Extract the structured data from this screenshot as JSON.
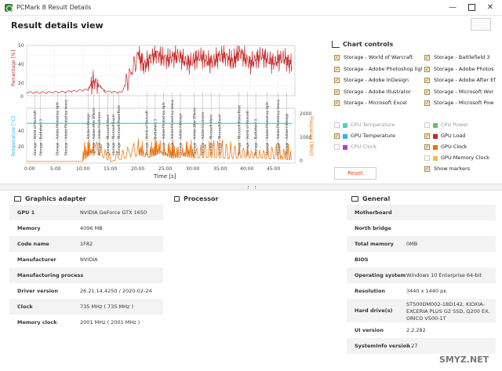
{
  "window": {
    "title": "PCMark 8 Result Details"
  },
  "page_title": "Result details view",
  "chart": {
    "y_left_label": "Percentage [%]",
    "y_temp_label": "Temperature [°C]",
    "y_freq_label": "Frequency [MHz]",
    "x_label": "Time [s]",
    "pct_ticks": [
      "50",
      "40",
      "20",
      "0"
    ],
    "temp_ticks": [
      "40",
      "20"
    ],
    "freq_ticks": [
      "2000",
      "1000",
      "0"
    ],
    "x_ticks": [
      "0:00",
      "5:00",
      "10:00",
      "15:00",
      "20:00",
      "25:00",
      "30:00",
      "35:00",
      "40:00",
      "45:00"
    ]
  },
  "chart_data": {
    "type": "line",
    "xlabel": "Time [s]",
    "ylabel": "Percentage [%]",
    "y2label": "Frequency [MHz]",
    "y3label": "Temperature [°C]",
    "x_range": [
      "0:00",
      "48:00"
    ],
    "ylim": [
      0,
      50
    ],
    "y2lim": [
      0,
      2500
    ],
    "series": [
      {
        "name": "GPU Load",
        "color": "#c62828",
        "x": [
          0,
          4,
          8,
          11,
          12,
          14,
          17,
          20,
          21,
          23,
          25,
          27,
          29,
          31,
          33,
          35,
          37,
          38,
          40,
          42,
          44,
          46,
          47.5
        ],
        "values": [
          2,
          2,
          3,
          5,
          15,
          3,
          2,
          40,
          30,
          42,
          36,
          40,
          32,
          39,
          33,
          41,
          34,
          44,
          32,
          40,
          33,
          38,
          30
        ]
      },
      {
        "name": "GPU Clock",
        "color": "#ef6c00",
        "x": [
          0,
          5,
          10,
          12,
          15,
          20,
          22,
          24,
          26,
          28,
          30,
          33,
          36,
          39,
          42,
          45,
          47.5
        ],
        "values": [
          150,
          150,
          160,
          1000,
          160,
          700,
          500,
          900,
          400,
          600,
          450,
          550,
          400,
          500,
          450,
          350,
          300
        ]
      },
      {
        "name": "GPU Temperature",
        "color": "#29b6f6",
        "x": [
          0,
          10,
          20,
          30,
          40,
          47.5
        ],
        "values": [
          35,
          35,
          35,
          35,
          35,
          35
        ]
      }
    ],
    "markers": [
      "Storage - World of Warcraft",
      "Storage - Battlefield 3",
      "Storage - Adobe Photoshop light",
      "Storage - Adobe Photoshop heavy",
      "Storage - Adobe InDesign",
      "Storage - Adobe After Effects",
      "Storage - Adobe Illustrator",
      "Storage - Microsoft Word",
      "Storage - Microsoft Excel",
      "Storage - Microsoft PowerPoint"
    ]
  },
  "controls": {
    "title": "Chart controls",
    "markers_left": [
      "Storage - World of Warcraft",
      "Storage - Adobe Photoshop light",
      "Storage - Adobe InDesign",
      "Storage - Adobe Illustrator",
      "Storage - Microsoft Excel"
    ],
    "markers_right": [
      "Storage - Battlefield 3",
      "Storage - Adobe Photos",
      "Storage - Adobe After Ef",
      "Storage - Microsoft Wor",
      "Storage - Microsoft Pow"
    ],
    "cpu_temp": "CPU Temperature",
    "gpu_temp": "GPU Temperature",
    "cpu_clock": "CPU Clock",
    "cpu_power": "CPU Power",
    "gpu_load": "GPU Load",
    "gpu_clock": "GPU Clock",
    "gpu_mem_clock": "GPU Memory Clock",
    "show_markers": "Show markers",
    "reset": "Reset",
    "colors": {
      "cpu_temp": "#4dd0c8",
      "gpu_temp": "#29b6f6",
      "cpu_clock": "#ab47bc",
      "cpu_power": "#66bb6a",
      "gpu_load": "#c62828",
      "gpu_clock": "#ef6c00",
      "gpu_mem_clock": "#f0c040"
    }
  },
  "graphics": {
    "title": "Graphics adapter",
    "rows": [
      {
        "k": "GPU 1",
        "v": "NVIDIA GeForce GTX 1650"
      },
      {
        "k": "Memory",
        "v": "4096 MB"
      },
      {
        "k": "Code name",
        "v": "1F82"
      },
      {
        "k": "Manufacturer",
        "v": "NVIDIA"
      },
      {
        "k": "Manufacturing process",
        "v": ""
      },
      {
        "k": "Driver version",
        "v": "26.21.14.4250 / 2020-02-24"
      },
      {
        "k": "Clock",
        "v": "735 MHz ( 735 MHz )"
      },
      {
        "k": "Memory clock",
        "v": "2001 MHz ( 2001 MHz )"
      }
    ]
  },
  "processor": {
    "title": "Processor"
  },
  "general": {
    "title": "General",
    "rows": [
      {
        "k": "Motherboard",
        "v": ""
      },
      {
        "k": "North bridge",
        "v": ""
      },
      {
        "k": "Total memory",
        "v": "0MB"
      },
      {
        "k": "BIOS",
        "v": ""
      },
      {
        "k": "Operating system",
        "v": "Windows 10 Enterprise 64-bit"
      },
      {
        "k": "Resolution",
        "v": "3440 x 1440 px"
      },
      {
        "k": "Hard drive(s)",
        "v": "ST500DM002-1BD142, KIOXIA-EXCERIA PLUS G2 SSD, Q200 EX, ORICO V500-1T"
      },
      {
        "k": "UI version",
        "v": "2.2.282"
      },
      {
        "k": "SystemInfo version",
        "v": "5.27"
      }
    ]
  },
  "watermark": "SMYZ.NET"
}
